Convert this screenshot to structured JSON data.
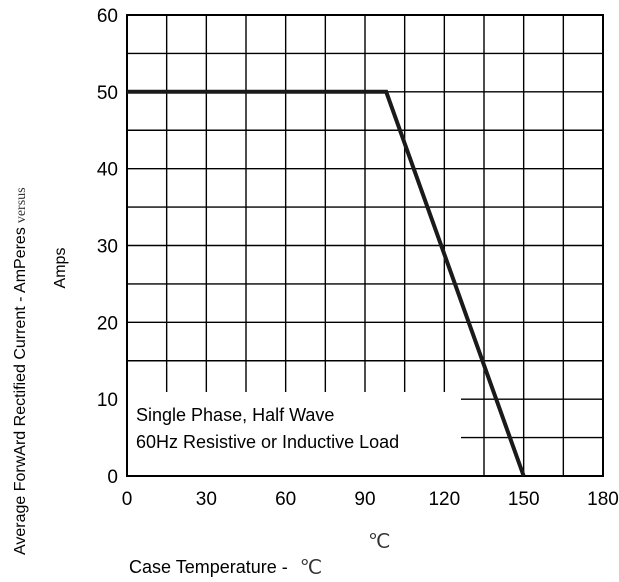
{
  "chart_data": {
    "type": "line",
    "x": [
      0,
      98,
      150
    ],
    "series": [
      {
        "values": [
          50,
          50,
          0
        ],
        "color": "#1a1a1a"
      }
    ],
    "xlim": [
      0,
      180
    ],
    "ylim": [
      0,
      60
    ],
    "xticks": [
      0,
      30,
      60,
      90,
      120,
      150,
      180
    ],
    "xtick_labels": [
      "0",
      "30",
      "60",
      "90",
      "120",
      "150",
      "180"
    ],
    "yticks": [
      0,
      10,
      20,
      30,
      40,
      50,
      60
    ],
    "ytick_labels": [
      "0",
      "10",
      "20",
      "30",
      "40",
      "50",
      "60"
    ],
    "grid": true,
    "ylabel": "Average ForwArd Rectified Current  -  AmPeres",
    "ylabel_suffix": "versus",
    "ylabel_line2": "Amps",
    "xlabel": "Case Temperature  -",
    "xlabel_unit": "℃",
    "unit_above": "℃",
    "annotation": {
      "lines": [
        "Single Phase, Half Wave",
        "60Hz Resistive or Inductive Load"
      ]
    }
  }
}
